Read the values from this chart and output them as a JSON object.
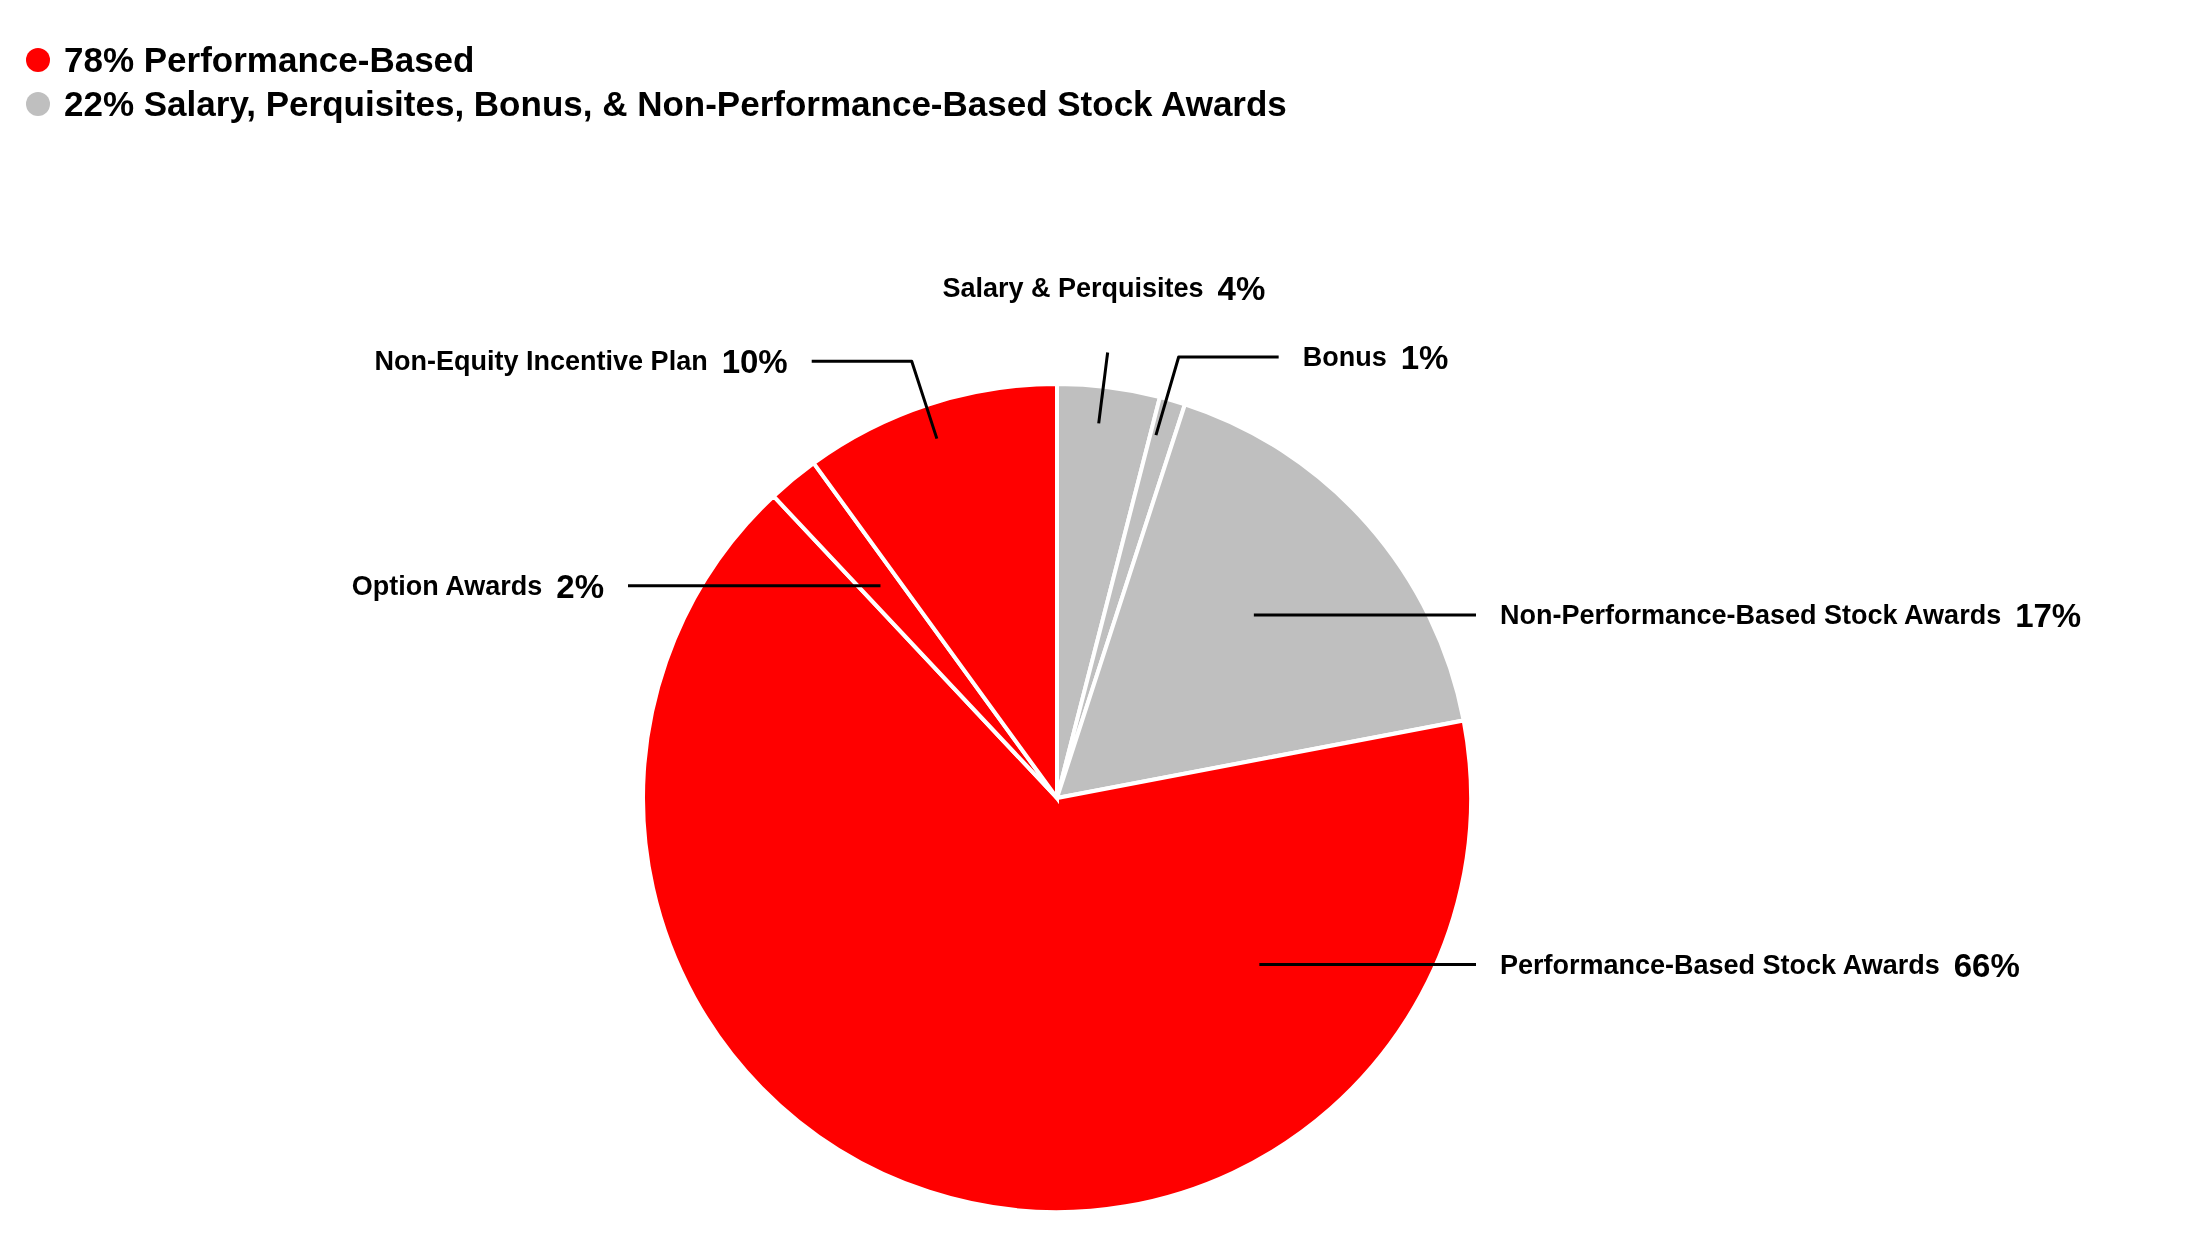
{
  "chart_data": {
    "type": "pie",
    "categories": [
      "Salary & Perquisites",
      "Bonus",
      "Non-Performance-Based Stock Awards",
      "Performance-Based Stock Awards",
      "Option Awards",
      "Non-Equity Incentive Plan"
    ],
    "values": [
      4,
      1,
      17,
      66,
      2,
      10
    ],
    "value_labels": [
      "4%",
      "1%",
      "17%",
      "66%",
      "2%",
      "10%"
    ],
    "colors": [
      "#bfbfbf",
      "#bfbfbf",
      "#bfbfbf",
      "#ff0000",
      "#ff0000",
      "#ff0000"
    ],
    "annotations": [
      "78% Performance-Based",
      "22% Salary, Perquisites, Bonus, & Non-Performance-Based Stock Awards"
    ]
  }
}
